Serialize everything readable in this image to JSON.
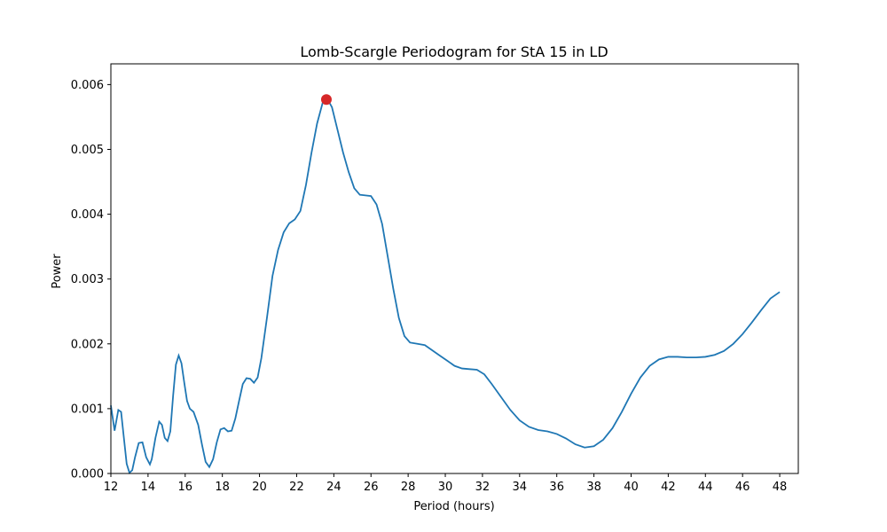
{
  "chart_data": {
    "type": "line",
    "title": "Lomb-Scargle Periodogram for StA 15 in LD",
    "xlabel": "Period (hours)",
    "ylabel": "Power",
    "xlim": [
      12,
      49
    ],
    "ylim": [
      0,
      0.00632
    ],
    "xticks": [
      "12",
      "14",
      "16",
      "18",
      "20",
      "22",
      "24",
      "26",
      "28",
      "30",
      "32",
      "34",
      "36",
      "38",
      "40",
      "42",
      "44",
      "46",
      "48"
    ],
    "yticks": [
      "0.000",
      "0.001",
      "0.002",
      "0.003",
      "0.004",
      "0.005",
      "0.006"
    ],
    "grid": false,
    "line_color": "#1f77b4",
    "peak_color": "#d62728",
    "series": [
      {
        "x": [
          12.0,
          12.2,
          12.4,
          12.55,
          12.7,
          12.85,
          13.0,
          13.15,
          13.3,
          13.5,
          13.7,
          13.9,
          14.1,
          14.2,
          14.4,
          14.6,
          14.75,
          14.9,
          15.05,
          15.2,
          15.35,
          15.5,
          15.65,
          15.8,
          15.95,
          16.1,
          16.25,
          16.45,
          16.7,
          16.9,
          17.1,
          17.3,
          17.5,
          17.7,
          17.9,
          18.1,
          18.3,
          18.5,
          18.7,
          18.9,
          19.1,
          19.3,
          19.5,
          19.7,
          19.9,
          20.1,
          20.4,
          20.7,
          21.0,
          21.3,
          21.6,
          21.9,
          22.2,
          22.5,
          22.8,
          23.1,
          23.4,
          23.65,
          23.9,
          24.2,
          24.5,
          24.8,
          25.1,
          25.4,
          25.7,
          26.0,
          26.3,
          26.6,
          26.9,
          27.2,
          27.5,
          27.8,
          28.1,
          28.5,
          28.9,
          29.3,
          29.7,
          30.1,
          30.5,
          30.9,
          31.3,
          31.7,
          32.1,
          32.5,
          33.0,
          33.5,
          34.0,
          34.5,
          35.0,
          35.5,
          36.0,
          36.5,
          37.0,
          37.5,
          38.0,
          38.5,
          39.0,
          39.5,
          40.0,
          40.5,
          41.0,
          41.5,
          42.0,
          42.5,
          43.0,
          43.5,
          44.0,
          44.5,
          45.0,
          45.5,
          46.0,
          46.5,
          47.0,
          47.5,
          48.0
        ],
        "values": [
          0.00105,
          0.00066,
          0.00098,
          0.00095,
          0.00055,
          0.00015,
          1e-05,
          5e-05,
          0.00025,
          0.00047,
          0.00048,
          0.00025,
          0.00014,
          0.00022,
          0.00055,
          0.0008,
          0.00075,
          0.00055,
          0.0005,
          0.00065,
          0.0012,
          0.00168,
          0.00182,
          0.0017,
          0.0014,
          0.00112,
          0.001,
          0.00095,
          0.00075,
          0.00045,
          0.00018,
          0.0001,
          0.00022,
          0.00048,
          0.00068,
          0.0007,
          0.00065,
          0.00066,
          0.00085,
          0.00112,
          0.00138,
          0.00147,
          0.00146,
          0.0014,
          0.00148,
          0.00178,
          0.0024,
          0.00305,
          0.00345,
          0.00372,
          0.00386,
          0.00392,
          0.00405,
          0.00445,
          0.00495,
          0.0054,
          0.00572,
          0.00578,
          0.00565,
          0.0053,
          0.00495,
          0.00465,
          0.0044,
          0.0043,
          0.00429,
          0.00428,
          0.00415,
          0.00385,
          0.00335,
          0.00285,
          0.0024,
          0.00212,
          0.00202,
          0.002,
          0.00198,
          0.0019,
          0.00182,
          0.00174,
          0.00166,
          0.00162,
          0.00161,
          0.0016,
          0.00153,
          0.00138,
          0.00118,
          0.00098,
          0.00082,
          0.00072,
          0.00067,
          0.00065,
          0.00061,
          0.00054,
          0.00045,
          0.0004,
          0.00042,
          0.00052,
          0.0007,
          0.00095,
          0.00123,
          0.00148,
          0.00166,
          0.00176,
          0.0018,
          0.0018,
          0.00179,
          0.00179,
          0.0018,
          0.00183,
          0.00189,
          0.002,
          0.00215,
          0.00233,
          0.00252,
          0.0027,
          0.0028
        ]
      }
    ],
    "peak": {
      "x": 23.6,
      "y": 0.00577
    }
  }
}
